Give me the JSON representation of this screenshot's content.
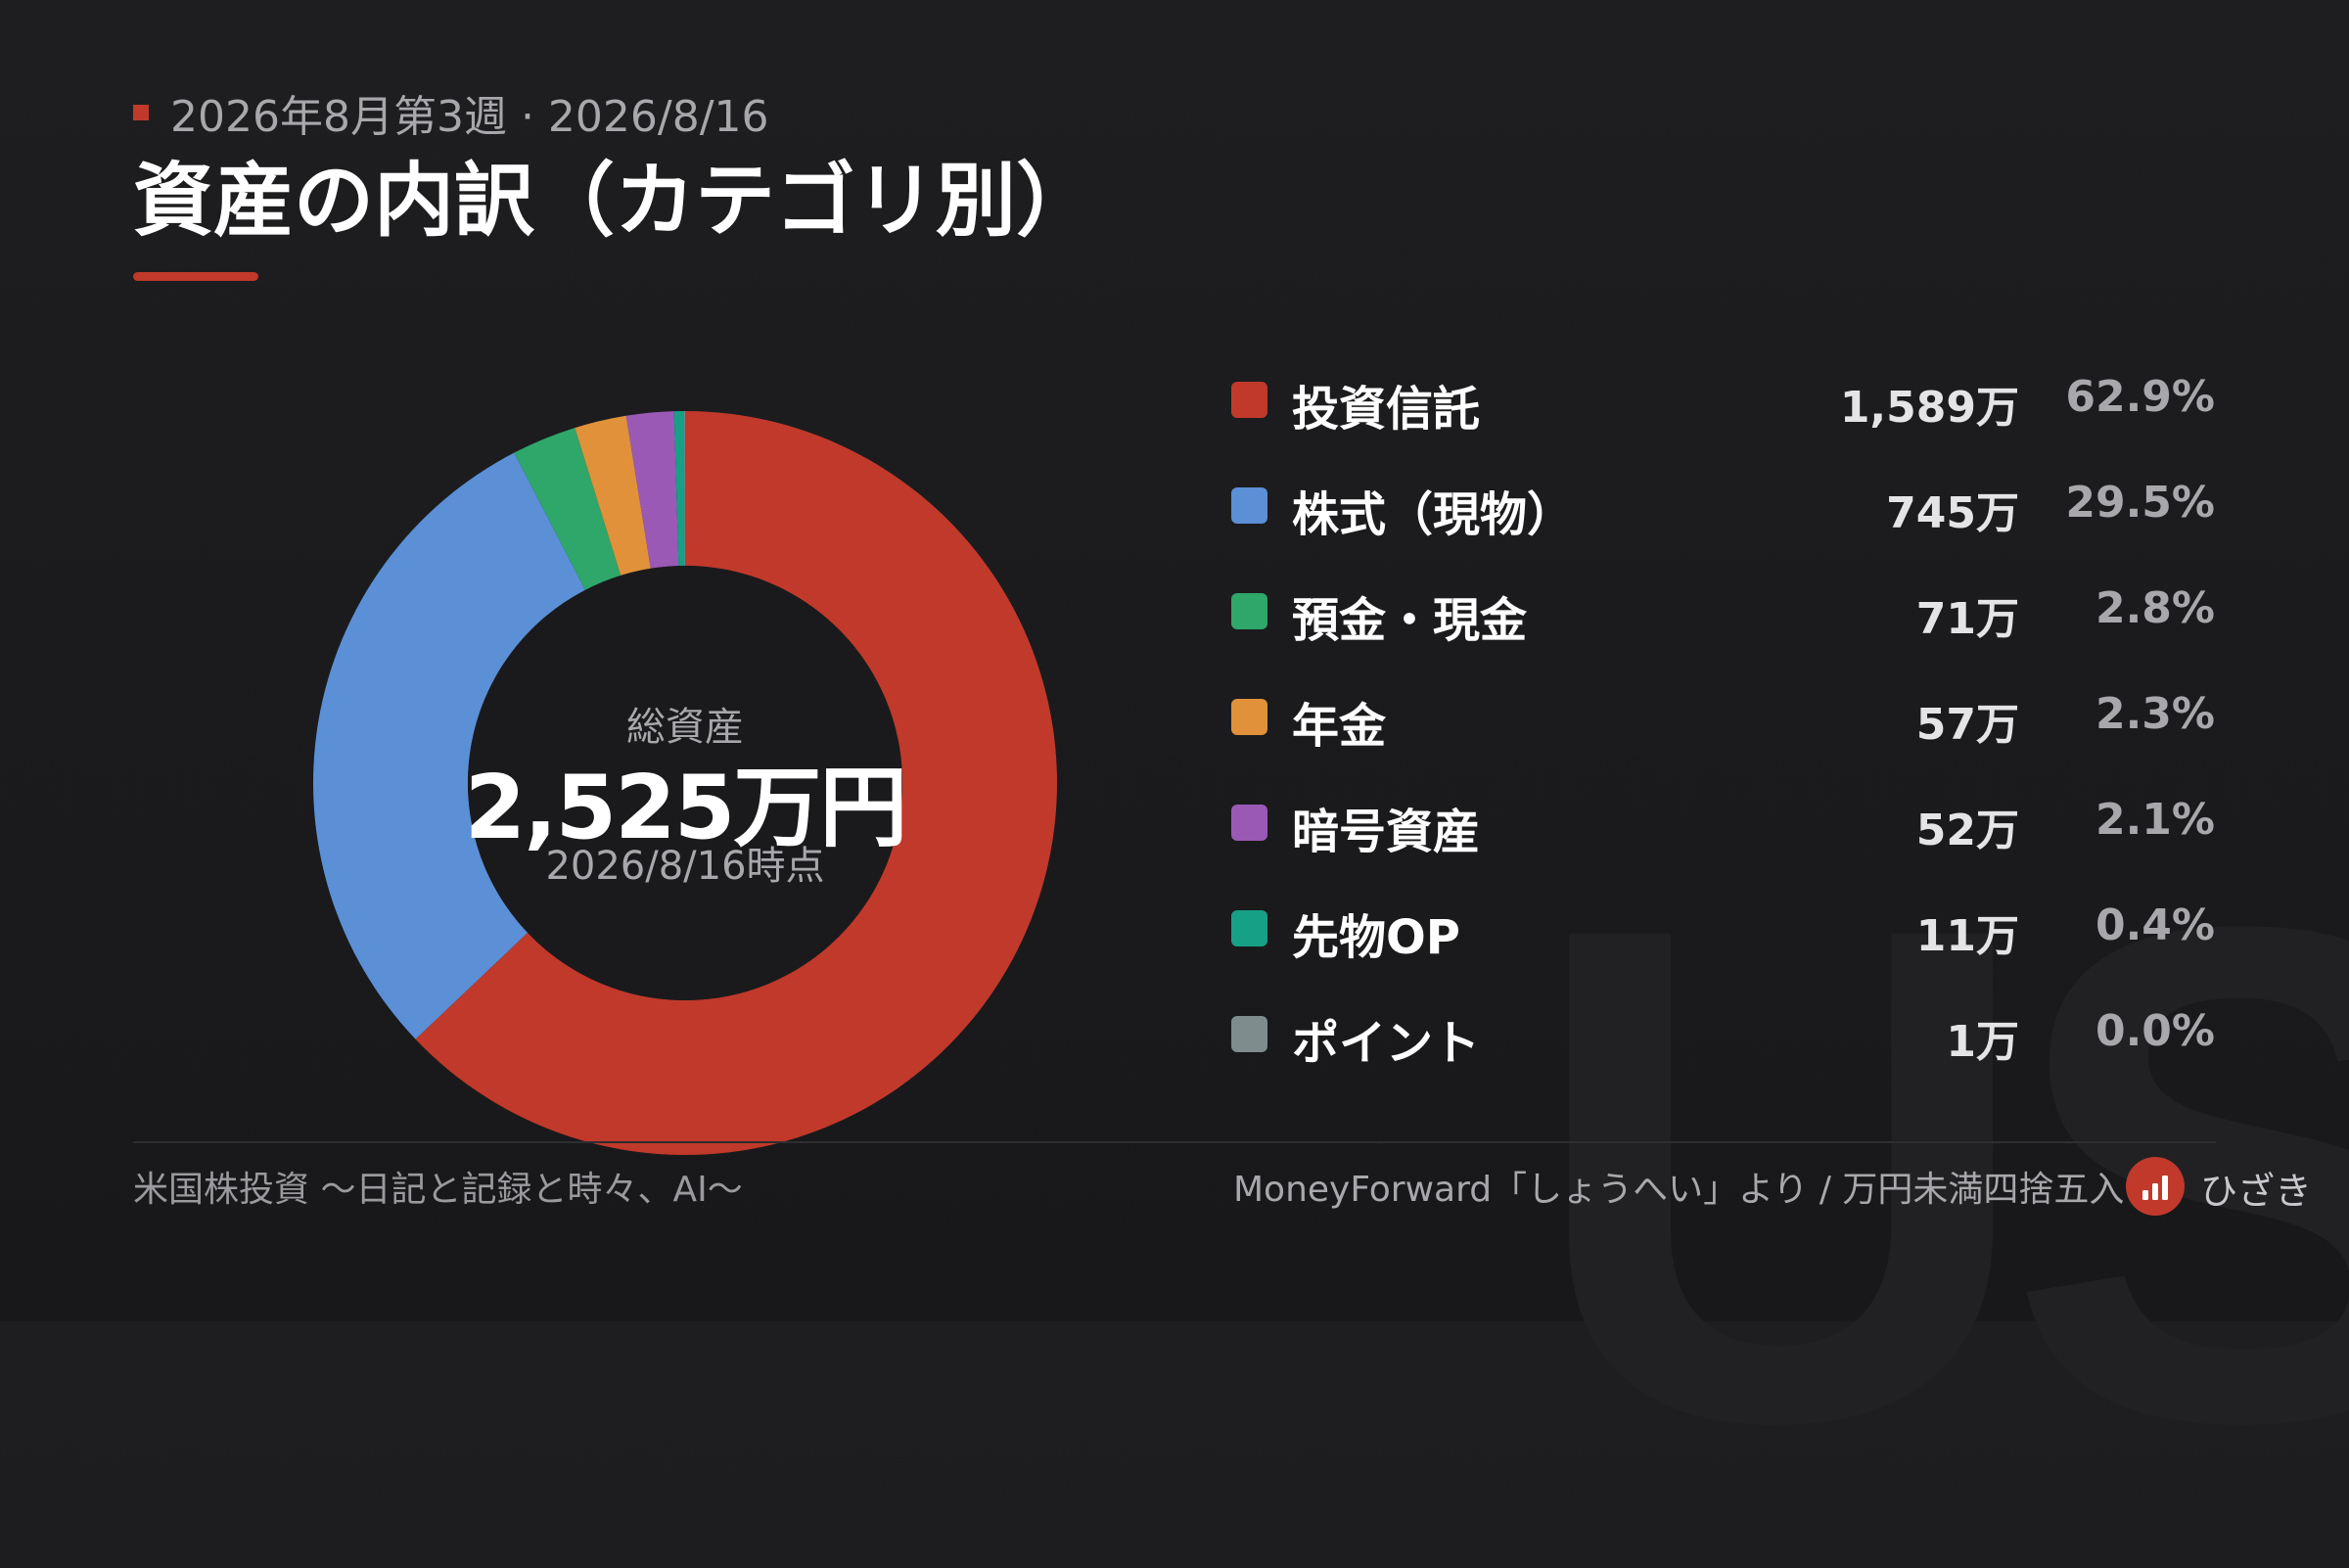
{
  "header": {
    "subtitle": "2026年8月第3週 · 2026/8/16",
    "title": "資産の内訳（カテゴリ別）"
  },
  "center": {
    "label": "総資産",
    "total": "2,525万円",
    "date": "2026/8/16時点"
  },
  "chart_data": {
    "type": "pie",
    "style": "donut",
    "categories": [
      "投資信託",
      "株式（現物）",
      "預金・現金",
      "年金",
      "暗号資産",
      "先物OP",
      "ポイント"
    ],
    "values": [
      1589,
      745,
      71,
      57,
      52,
      11,
      1
    ],
    "value_labels": [
      "1,589万",
      "745万",
      "71万",
      "57万",
      "52万",
      "11万",
      "1万"
    ],
    "percent_labels": [
      "62.9%",
      "29.5%",
      "2.8%",
      "2.3%",
      "2.1%",
      "0.4%",
      "0.0%"
    ],
    "colors": [
      "#c0392b",
      "#5b8fd6",
      "#2fa66a",
      "#e0913a",
      "#9b59b6",
      "#16a085",
      "#7f8c8d"
    ],
    "legend_position": "right"
  },
  "footer": {
    "left": "米国株投資 〜日記と記録と時々、AI〜",
    "right": "MoneyForward「しょうへい」より / 万円未満四捨五入",
    "brand": "ひざき",
    "logo_icon": "bar-chart-icon"
  },
  "watermark": "US"
}
